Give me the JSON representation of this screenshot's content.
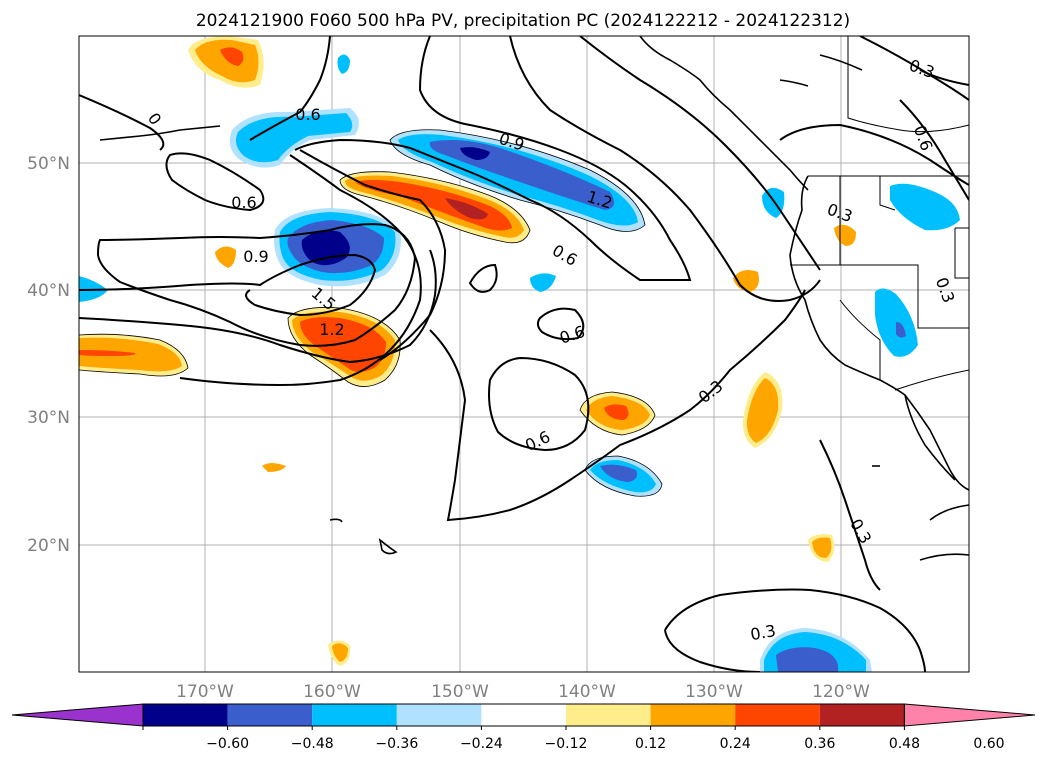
{
  "title": "2024121900 F060 500 hPa PV, precipitation PC (2024122212 - 2024122312)",
  "lon_ticks": [
    "170°W",
    "160°W",
    "150°W",
    "140°W",
    "130°W",
    "120°W"
  ],
  "lat_ticks": [
    "50°N",
    "40°N",
    "30°N",
    "20°N"
  ],
  "colorbar": {
    "colors": [
      "#9a32cd",
      "#00008b",
      "#3a5fcd",
      "#00bfff",
      "#b0e2ff",
      "#ffffff",
      "#ffec8b",
      "#ffa500",
      "#ff4500",
      "#b22222",
      "#ff82ab"
    ],
    "labels": [
      "−0.60",
      "−0.48",
      "−0.36",
      "−0.24",
      "−0.12",
      "0.12",
      "0.24",
      "0.36",
      "0.48",
      "0.60"
    ]
  },
  "contour_labels": {
    "l1": "0.6",
    "l2": "0.6",
    "l3": "0.9",
    "l4": "1.5",
    "l5": "1.2",
    "l6": "0.9",
    "l7": "1.2",
    "l8": "0.6",
    "l9": "0.6",
    "l10": "0.3",
    "l11": "0.6",
    "l12": "0.3",
    "l13": "0.3",
    "l14": "0.6",
    "l15": "0.3",
    "l16": "0.3",
    "l17": "0.3",
    "l18": "0"
  }
}
